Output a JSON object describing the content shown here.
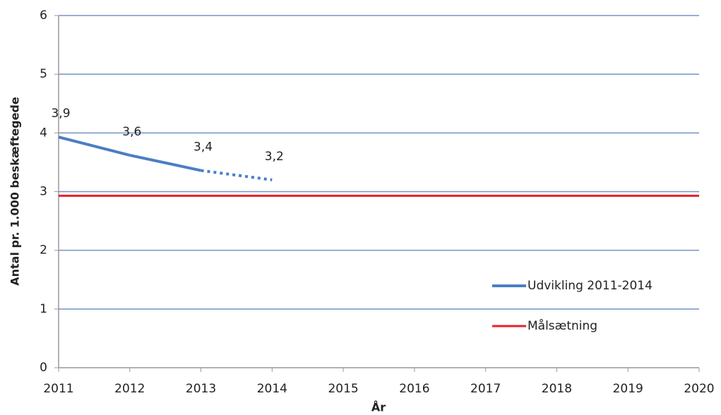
{
  "chart_data": {
    "type": "line",
    "xlabel": "År",
    "ylabel": "Antal pr. 1.000 beskæftegede",
    "xlim": [
      2011,
      2020
    ],
    "xticks": [
      2011,
      2012,
      2013,
      2014,
      2015,
      2016,
      2017,
      2018,
      2019,
      2020
    ],
    "ylim": [
      0,
      6
    ],
    "yticks": [
      0,
      1,
      2,
      3,
      4,
      5,
      6
    ],
    "grid": true,
    "legend": "lower right",
    "series": [
      {
        "name": "Udvikling 2011-2014",
        "color": "#4a7ec4",
        "x": [
          2011,
          2012,
          2013,
          2014
        ],
        "values": [
          3.93,
          3.62,
          3.36,
          3.2
        ],
        "value_labels": [
          "3,9",
          "3,6",
          "3,4",
          "3,2"
        ],
        "segment_styles": [
          "solid",
          "solid",
          "dotted"
        ]
      },
      {
        "name": "Målsætning",
        "color": "#e8202a",
        "x": [
          2011,
          2020
        ],
        "values": [
          2.93,
          2.93
        ]
      }
    ]
  }
}
